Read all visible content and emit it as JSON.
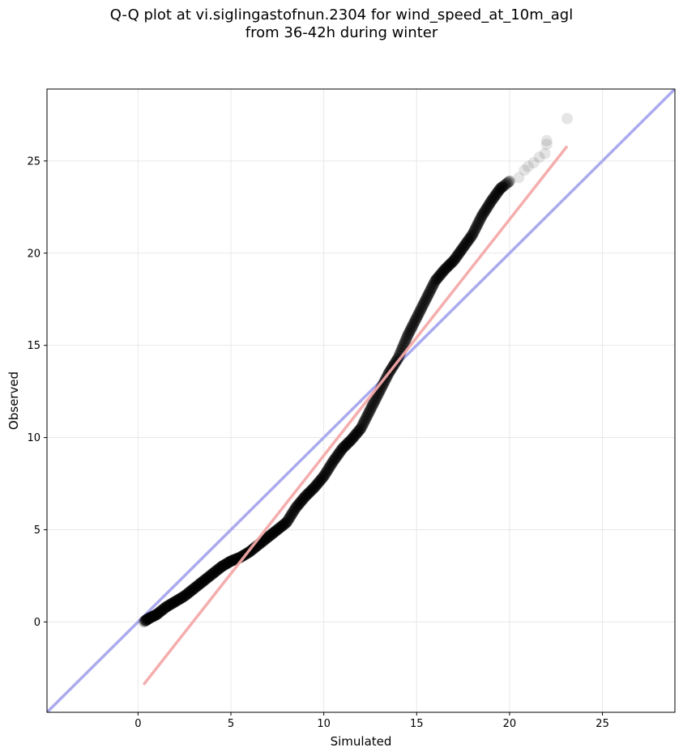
{
  "title_line1": "Q-Q plot at vi.siglingastofnun.2304 for wind_speed_at_10m_agl",
  "title_line2": "from 36-42h during winter",
  "chart_data": {
    "type": "scatter",
    "xlabel": "Simulated",
    "ylabel": "Observed",
    "xlim": [
      -4.9,
      28.9
    ],
    "ylim": [
      -4.9,
      28.9
    ],
    "xticks": [
      0,
      5,
      10,
      15,
      20,
      25
    ],
    "yticks": [
      0,
      5,
      10,
      15,
      20,
      25
    ],
    "grid": true,
    "colors": {
      "points": "#000000",
      "identity_line": "#aaaaee",
      "fit_line": "#f4a9a9",
      "grid": "#e8e8e8"
    },
    "quantile_curve": [
      [
        0.3,
        0.0
      ],
      [
        0.6,
        0.2
      ],
      [
        1.0,
        0.4
      ],
      [
        1.5,
        0.8
      ],
      [
        2.0,
        1.1
      ],
      [
        2.5,
        1.4
      ],
      [
        3.0,
        1.8
      ],
      [
        3.5,
        2.2
      ],
      [
        4.0,
        2.6
      ],
      [
        4.5,
        3.0
      ],
      [
        5.0,
        3.3
      ],
      [
        5.5,
        3.5
      ],
      [
        6.0,
        3.8
      ],
      [
        6.5,
        4.2
      ],
      [
        7.0,
        4.6
      ],
      [
        7.5,
        5.0
      ],
      [
        8.0,
        5.4
      ],
      [
        8.5,
        6.2
      ],
      [
        9.0,
        6.8
      ],
      [
        9.5,
        7.3
      ],
      [
        10.0,
        7.9
      ],
      [
        10.5,
        8.7
      ],
      [
        11.0,
        9.4
      ],
      [
        11.5,
        9.9
      ],
      [
        12.0,
        10.5
      ],
      [
        12.5,
        11.5
      ],
      [
        13.0,
        12.5
      ],
      [
        13.5,
        13.5
      ],
      [
        14.0,
        14.3
      ],
      [
        14.5,
        15.5
      ],
      [
        15.0,
        16.5
      ],
      [
        15.5,
        17.5
      ],
      [
        16.0,
        18.5
      ],
      [
        16.5,
        19.1
      ],
      [
        17.0,
        19.6
      ],
      [
        17.5,
        20.3
      ],
      [
        18.0,
        21.0
      ],
      [
        18.5,
        22.0
      ],
      [
        19.0,
        22.8
      ],
      [
        19.5,
        23.5
      ],
      [
        20.0,
        23.9
      ]
    ],
    "sparse_points": [
      [
        20.5,
        24.1
      ],
      [
        20.8,
        24.5
      ],
      [
        21.0,
        24.7
      ],
      [
        21.3,
        24.9
      ],
      [
        21.6,
        25.2
      ],
      [
        21.9,
        25.4
      ],
      [
        22.0,
        25.9
      ],
      [
        22.0,
        26.1
      ],
      [
        23.1,
        27.3
      ]
    ],
    "identity_line": [
      [
        -4.9,
        -4.9
      ],
      [
        28.9,
        28.9
      ]
    ],
    "fit_line": [
      [
        0.3,
        -3.4
      ],
      [
        23.1,
        25.8
      ]
    ]
  }
}
